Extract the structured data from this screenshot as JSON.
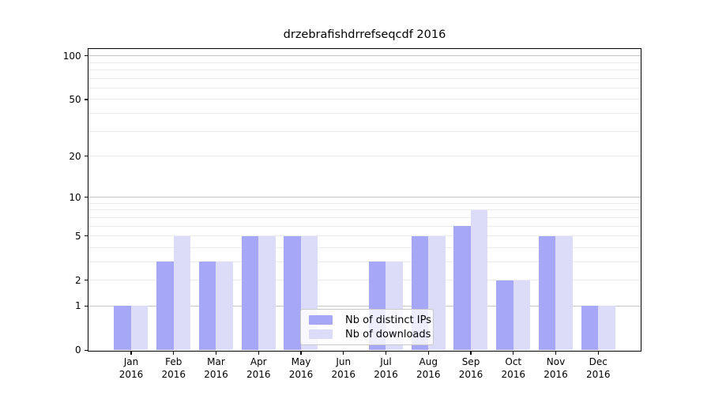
{
  "title": "drzebrafishdrrefseqcdf 2016",
  "colors": {
    "distinct_ips_bar": "#a7a7f7",
    "downloads_bar": "#dcdcf9",
    "grid_minor": "#ebebeb",
    "grid_major": "#c6c6c6",
    "axis": "#000000"
  },
  "legend": {
    "items": [
      {
        "label": "Nb of distinct IPs",
        "color": "#a7a7f7"
      },
      {
        "label": "Nb of downloads",
        "color": "#dcdcf9"
      }
    ]
  },
  "chart_data": {
    "type": "bar",
    "title": "drzebrafishdrrefseqcdf 2016",
    "xlabel": "",
    "ylabel": "",
    "y_scale": "log1p",
    "ylim": [
      0,
      110.6
    ],
    "grid": "on",
    "legend_position": "bottom-center-inside",
    "categories": [
      "Jan",
      "Feb",
      "Mar",
      "Apr",
      "May",
      "Jun",
      "Jul",
      "Aug",
      "Sep",
      "Oct",
      "Nov",
      "Dec"
    ],
    "x_tick_second_line": "2016",
    "y_ticks": [
      100,
      50,
      20,
      10,
      5,
      2,
      1,
      0
    ],
    "y_minor_gridlines": [
      2,
      3,
      4,
      5,
      6,
      7,
      8,
      9,
      20,
      30,
      40,
      50,
      60,
      70,
      80,
      90
    ],
    "y_major_gridlines": [
      1,
      10,
      100
    ],
    "series": [
      {
        "name": "Nb of distinct IPs",
        "color": "#a7a7f7",
        "values": [
          1,
          3,
          3,
          5,
          5,
          0,
          3,
          5,
          6,
          2,
          5,
          1
        ]
      },
      {
        "name": "Nb of downloads",
        "color": "#dcdcf9",
        "values": [
          1,
          5,
          3,
          5,
          5,
          0,
          3,
          5,
          8,
          2,
          5,
          1
        ]
      }
    ]
  }
}
